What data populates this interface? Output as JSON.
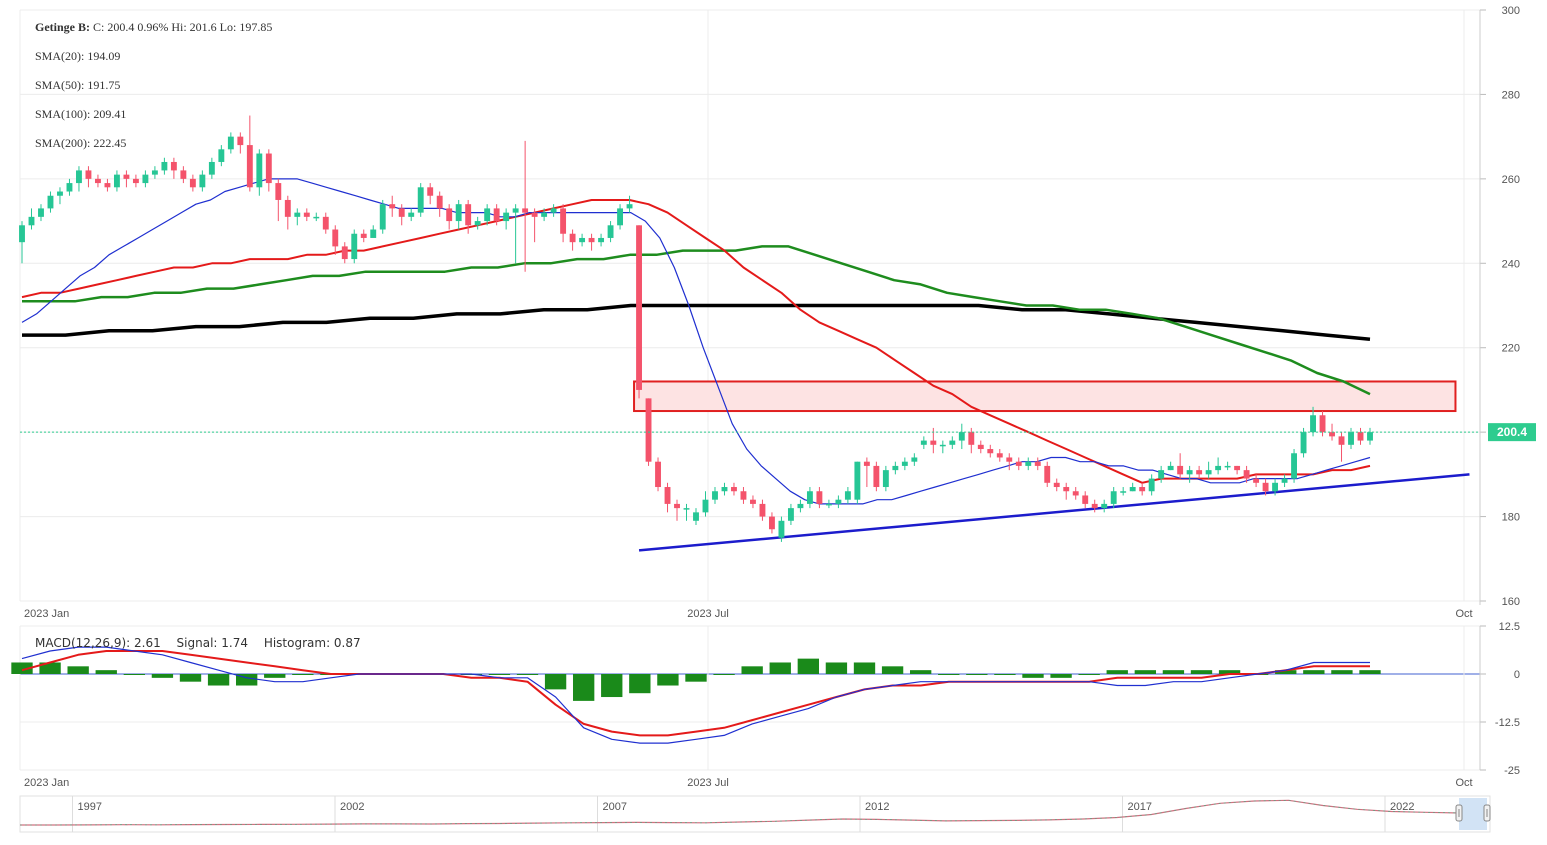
{
  "legend": {
    "ticker": "Getinge B:",
    "quote": "C: 200.4 0.96% Hi: 201.6 Lo: 197.85",
    "sma20": "SMA(20): 194.09",
    "sma50": "SMA(50): 191.75",
    "sma100": "SMA(100): 209.41",
    "sma200": "SMA(200): 222.45"
  },
  "macd_legend": {
    "macd": "MACD(12,26,9): 2.61",
    "signal": "Signal: 1.74",
    "histogram": "Histogram: 0.87"
  },
  "last_price_label": "200.4",
  "colors": {
    "up": "#26c695",
    "down": "#f4536b",
    "sma20": "#1f2fd0",
    "sma50": "#e41a1a",
    "sma100": "#1e8c1e",
    "sma200": "#000000",
    "trendline": "#1c1ccc",
    "zone_fill": "#fde3e3",
    "zone_stroke": "#e02020",
    "macd_line": "#2030d0",
    "signal_line": "#e41a1a",
    "histogram": "#1a8a1a",
    "price_badge": "#2ecc8f"
  },
  "chart_data": [
    {
      "type": "candlestick",
      "title": "",
      "x_tick_labels": [
        "2023 Jan",
        "2023 Jul",
        "Oct"
      ],
      "ylim": [
        160,
        300
      ],
      "y_ticks": [
        160,
        180,
        200,
        220,
        240,
        260,
        280,
        300
      ],
      "candles": [
        [
          245,
          249,
          240,
          250
        ],
        [
          249,
          251,
          248,
          253
        ],
        [
          251,
          253,
          250,
          254
        ],
        [
          253,
          256,
          252,
          257
        ],
        [
          256,
          257,
          254,
          258
        ],
        [
          257,
          259,
          256,
          260
        ],
        [
          259,
          262,
          257,
          263
        ],
        [
          262,
          260,
          258,
          263
        ],
        [
          260,
          259,
          258,
          261
        ],
        [
          259,
          258,
          257,
          260
        ],
        [
          258,
          261,
          257,
          262
        ],
        [
          261,
          260,
          258,
          262
        ],
        [
          260,
          259,
          258,
          261
        ],
        [
          259,
          261,
          258,
          262
        ],
        [
          261,
          262,
          260,
          263
        ],
        [
          262,
          264,
          261,
          265
        ],
        [
          264,
          262,
          260,
          265
        ],
        [
          262,
          260,
          259,
          263
        ],
        [
          260,
          258,
          257,
          261
        ],
        [
          258,
          261,
          257,
          262
        ],
        [
          261,
          264,
          260,
          265
        ],
        [
          264,
          267,
          263,
          268
        ],
        [
          267,
          270,
          266,
          271
        ],
        [
          270,
          268,
          266,
          271
        ],
        [
          268,
          258,
          257,
          275
        ],
        [
          258,
          266,
          256,
          267
        ],
        [
          266,
          259,
          257,
          267
        ],
        [
          259,
          255,
          250,
          260
        ],
        [
          255,
          251,
          248,
          256
        ],
        [
          251,
          252,
          249,
          253
        ],
        [
          252,
          251,
          250,
          253
        ],
        [
          251,
          251,
          250,
          252
        ],
        [
          251,
          248,
          247,
          252
        ],
        [
          248,
          244,
          242,
          249
        ],
        [
          244,
          241,
          240,
          245
        ],
        [
          241,
          247,
          240,
          248
        ],
        [
          247,
          246,
          245,
          248
        ],
        [
          246,
          248,
          247,
          249
        ],
        [
          248,
          254,
          247,
          255
        ],
        [
          254,
          253,
          251,
          256
        ],
        [
          253,
          251,
          249,
          254
        ],
        [
          251,
          252,
          250,
          253
        ],
        [
          252,
          258,
          251,
          259
        ],
        [
          258,
          256,
          254,
          259
        ],
        [
          256,
          253,
          251,
          257
        ],
        [
          253,
          250,
          248,
          254
        ],
        [
          250,
          254,
          248,
          255
        ],
        [
          254,
          249,
          247,
          255
        ],
        [
          249,
          250,
          248,
          251
        ],
        [
          250,
          253,
          249,
          254
        ],
        [
          253,
          250,
          249,
          254
        ],
        [
          250,
          252,
          248,
          253
        ],
        [
          252,
          253,
          240,
          254
        ],
        [
          253,
          252,
          238,
          269
        ],
        [
          252,
          251,
          245,
          253
        ],
        [
          251,
          252,
          250,
          253
        ],
        [
          252,
          253,
          251,
          254
        ],
        [
          253,
          247,
          245,
          254
        ],
        [
          247,
          245,
          243,
          248
        ],
        [
          245,
          246,
          244,
          247
        ],
        [
          246,
          245,
          243,
          247
        ],
        [
          245,
          246,
          244,
          247
        ],
        [
          246,
          249,
          245,
          250
        ],
        [
          249,
          253,
          248,
          254
        ],
        [
          253,
          254,
          252,
          256
        ],
        [
          249,
          210,
          208,
          249
        ],
        [
          208,
          193,
          192,
          208
        ],
        [
          193,
          187,
          186,
          194
        ],
        [
          187,
          183,
          181,
          188
        ],
        [
          183,
          182,
          179,
          184
        ],
        [
          182,
          182,
          179,
          183
        ],
        [
          179,
          181,
          178,
          182
        ],
        [
          181,
          184,
          180,
          186
        ],
        [
          184,
          186,
          183,
          187
        ],
        [
          186,
          187,
          185,
          188
        ],
        [
          187,
          186,
          185,
          188
        ],
        [
          186,
          184,
          183,
          187
        ],
        [
          184,
          183,
          182,
          185
        ],
        [
          183,
          180,
          179,
          184
        ],
        [
          180,
          177,
          176,
          181
        ],
        [
          175,
          179,
          174,
          180
        ],
        [
          179,
          182,
          178,
          183
        ],
        [
          182,
          183,
          181,
          184
        ],
        [
          183,
          186,
          182,
          187
        ],
        [
          186,
          183,
          182,
          187
        ],
        [
          183,
          183,
          182,
          184
        ],
        [
          183,
          184,
          182,
          185
        ],
        [
          184,
          186,
          183,
          187
        ],
        [
          184,
          193,
          183,
          193
        ],
        [
          193,
          192,
          187,
          194
        ],
        [
          192,
          187,
          186,
          193
        ],
        [
          187,
          191,
          186,
          192
        ],
        [
          191,
          192,
          190,
          193
        ],
        [
          192,
          193,
          191,
          194
        ],
        [
          193,
          194,
          192,
          195
        ],
        [
          197,
          198,
          196,
          199
        ],
        [
          198,
          197,
          195,
          201
        ],
        [
          197,
          197,
          195,
          198
        ],
        [
          197,
          198,
          196,
          199
        ],
        [
          198,
          200,
          196,
          202
        ],
        [
          200,
          197,
          195,
          201
        ],
        [
          197,
          196,
          195,
          198
        ],
        [
          196,
          195,
          194,
          197
        ],
        [
          195,
          194,
          193,
          196
        ],
        [
          194,
          193,
          191,
          195
        ],
        [
          193,
          192,
          191,
          194
        ],
        [
          192,
          193,
          191,
          194
        ],
        [
          193,
          192,
          191,
          194
        ],
        [
          192,
          188,
          187,
          193
        ],
        [
          188,
          187,
          186,
          189
        ],
        [
          187,
          186,
          184,
          188
        ],
        [
          186,
          185,
          184,
          187
        ],
        [
          185,
          183,
          182,
          186
        ],
        [
          183,
          182,
          181,
          184
        ],
        [
          182,
          183,
          181,
          184
        ],
        [
          183,
          186,
          182,
          187
        ],
        [
          186,
          186,
          185,
          187
        ],
        [
          186,
          187,
          186,
          188
        ],
        [
          187,
          186,
          185,
          188
        ],
        [
          186,
          189,
          185,
          190
        ],
        [
          189,
          191,
          188,
          192
        ],
        [
          191,
          192,
          191,
          193
        ],
        [
          192,
          190,
          189,
          195
        ],
        [
          190,
          191,
          188,
          192
        ],
        [
          191,
          190,
          189,
          192
        ],
        [
          190,
          191,
          189,
          193
        ],
        [
          191,
          192,
          190,
          194
        ],
        [
          192,
          192,
          191,
          193
        ],
        [
          192,
          191,
          190,
          192
        ],
        [
          191,
          189,
          188,
          192
        ],
        [
          189,
          188,
          187,
          190
        ],
        [
          188,
          186,
          185,
          189
        ],
        [
          186,
          188,
          185,
          189
        ],
        [
          188,
          189,
          187,
          190
        ],
        [
          189,
          195,
          188,
          196
        ],
        [
          195,
          200,
          194,
          201
        ],
        [
          200,
          204,
          199,
          206
        ],
        [
          204,
          200,
          199,
          205
        ],
        [
          200,
          199,
          198,
          202
        ],
        [
          199,
          197,
          193,
          200
        ],
        [
          197,
          200,
          196,
          201
        ],
        [
          200,
          198,
          197,
          201
        ],
        [
          198,
          200,
          197,
          201
        ]
      ],
      "sma20": [
        226,
        228,
        231,
        234,
        237,
        239,
        242,
        244,
        246,
        248,
        250,
        252,
        254,
        255,
        257,
        258,
        259,
        260,
        260,
        260,
        259,
        258,
        257,
        256,
        255,
        254,
        253,
        253,
        253,
        253,
        252,
        252,
        252,
        251,
        251,
        252,
        252,
        252,
        252,
        252,
        252,
        252,
        252,
        250,
        246,
        239,
        230,
        220,
        211,
        202,
        196,
        192,
        189,
        186,
        184,
        183,
        183,
        183,
        183,
        184,
        184,
        185,
        186,
        187,
        188,
        189,
        190,
        191,
        192,
        193,
        193,
        194,
        194,
        193,
        193,
        192,
        192,
        191,
        191,
        190,
        189,
        189,
        188,
        188,
        188,
        189,
        189,
        189,
        189,
        190,
        191,
        192,
        193,
        194
      ],
      "sma50": [
        232,
        233,
        233,
        234,
        235,
        236,
        237,
        238,
        239,
        239,
        240,
        240,
        241,
        241,
        241,
        242,
        242,
        243,
        243,
        244,
        245,
        246,
        247,
        248,
        249,
        250,
        251,
        252,
        253,
        254,
        255,
        255,
        255,
        254,
        252,
        249,
        246,
        243,
        239,
        236,
        233,
        229,
        226,
        224,
        222,
        220,
        217,
        214,
        211,
        209,
        206,
        204,
        202,
        200,
        198,
        196,
        194,
        192,
        190,
        188,
        189,
        189,
        189,
        189,
        189,
        190,
        190,
        190,
        190,
        191,
        191,
        192
      ],
      "sma100": [
        231,
        231,
        231,
        232,
        232,
        233,
        233,
        234,
        234,
        235,
        236,
        237,
        237,
        238,
        238,
        238,
        238,
        239,
        239,
        240,
        240,
        241,
        241,
        242,
        242,
        243,
        243,
        243,
        244,
        244,
        242,
        240,
        238,
        236,
        235,
        233,
        232,
        231,
        230,
        230,
        229,
        229,
        228,
        227,
        225,
        223,
        221,
        219,
        217,
        214,
        212,
        209
      ],
      "sma200": [
        223,
        223,
        224,
        224,
        225,
        225,
        226,
        226,
        227,
        227,
        228,
        228,
        229,
        229,
        230,
        230,
        230,
        230,
        230,
        230,
        230,
        230,
        230,
        229,
        229,
        228,
        227,
        226,
        225,
        224,
        223,
        222
      ],
      "trendline": [
        [
          65,
          172
        ],
        [
          147,
          190
        ]
      ],
      "resistance_zone": {
        "x": [
          65,
          147
        ],
        "y": [
          205,
          212
        ]
      }
    },
    {
      "type": "macd",
      "title": "",
      "x_tick_labels": [
        "2023 Jan",
        "2023 Jul",
        "Oct"
      ],
      "ylim": [
        -25,
        12.5
      ],
      "y_ticks": [
        12.5,
        0,
        -12.5,
        -25
      ],
      "macd": [
        4,
        6,
        7,
        7,
        6,
        5,
        3,
        1,
        -1,
        -2,
        -2,
        -1,
        0,
        0,
        0,
        0,
        0,
        -1,
        -1,
        -6,
        -14,
        -17,
        -18,
        -18,
        -17,
        -16,
        -13,
        -11,
        -9,
        -6,
        -4,
        -3,
        -2,
        -2,
        -2,
        -2,
        -2,
        -2,
        -2,
        -3,
        -3,
        -2,
        -2,
        -1,
        0,
        1,
        3,
        3,
        3
      ],
      "signal": [
        1,
        3,
        5,
        6,
        6,
        6,
        5,
        4,
        3,
        2,
        1,
        0,
        0,
        0,
        0,
        0,
        -1,
        -1,
        -2,
        -8,
        -13,
        -15,
        -16,
        -16,
        -15,
        -14,
        -12,
        -10,
        -8,
        -6,
        -4,
        -3,
        -3,
        -2,
        -2,
        -2,
        -2,
        -2,
        -2,
        -1,
        -1,
        -1,
        -1,
        0,
        0,
        1,
        2,
        2,
        2
      ],
      "histogram": [
        3,
        3,
        2,
        1,
        0,
        -1,
        -2,
        -3,
        -3,
        -1,
        0,
        0,
        0,
        0,
        0,
        0,
        0,
        0,
        0,
        -4,
        -7,
        -6,
        -5,
        -3,
        -2,
        0,
        2,
        3,
        4,
        3,
        3,
        2,
        1,
        0,
        0,
        0,
        -1,
        -1,
        0,
        1,
        1,
        1,
        1,
        1,
        0,
        1,
        1,
        1,
        1
      ]
    },
    {
      "type": "line",
      "title": "",
      "x_tick_labels": [
        "1997",
        "2002",
        "2007",
        "2012",
        "2017",
        "2022"
      ],
      "xlim": [
        1996,
        2024
      ],
      "y": [
        40,
        40,
        42,
        44,
        43,
        45,
        46,
        48,
        50,
        52,
        55,
        55,
        54,
        58,
        60,
        65,
        70,
        72,
        75,
        72,
        70,
        80,
        90,
        105,
        120,
        115,
        105,
        95,
        98,
        102,
        108,
        120,
        140,
        180,
        260,
        330,
        360,
        370,
        300,
        250,
        220,
        210,
        200
      ]
    }
  ]
}
